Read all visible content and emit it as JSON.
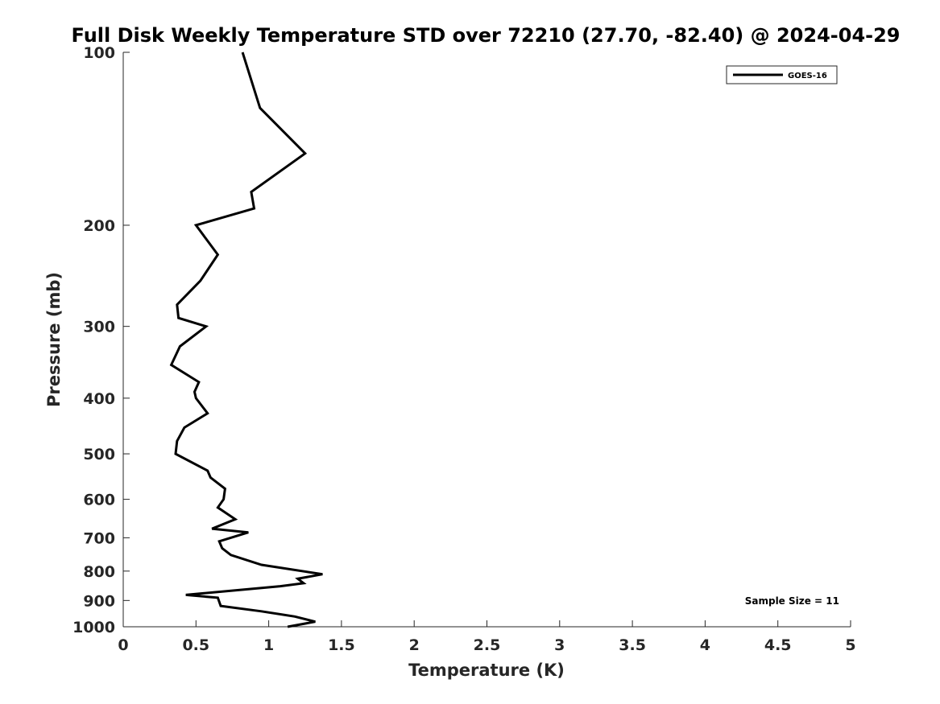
{
  "chart_data": {
    "type": "line",
    "title": "Full Disk Weekly Temperature STD over 72210 (27.70, -82.40) @ 2024-04-29",
    "xlabel": "Temperature (K)",
    "ylabel": "Pressure (mb)",
    "xlim": [
      0,
      5
    ],
    "ylim": [
      1000,
      100
    ],
    "yscale": "log",
    "xticks": [
      0,
      0.5,
      1,
      1.5,
      2,
      2.5,
      3,
      3.5,
      4,
      4.5,
      5
    ],
    "xtick_labels": [
      "0",
      "0.5",
      "1",
      "1.5",
      "2",
      "2.5",
      "3",
      "3.5",
      "4",
      "4.5",
      "5"
    ],
    "yticks": [
      100,
      200,
      300,
      400,
      500,
      600,
      700,
      800,
      900,
      1000
    ],
    "ytick_labels": [
      "100",
      "200",
      "300",
      "400",
      "500",
      "600",
      "700",
      "800",
      "900",
      "1000"
    ],
    "grid": false,
    "legend_position": "top-right",
    "annotation": "Sample Size = 11",
    "series": [
      {
        "name": "GOES-16",
        "color": "#000000",
        "temperature": [
          0.82,
          0.94,
          1.25,
          0.88,
          0.9,
          0.5,
          0.65,
          0.53,
          0.37,
          0.38,
          0.57,
          0.39,
          0.33,
          0.52,
          0.49,
          0.5,
          0.58,
          0.42,
          0.37,
          0.36,
          0.58,
          0.6,
          0.7,
          0.69,
          0.65,
          0.77,
          0.61,
          0.86,
          0.66,
          0.68,
          0.74,
          0.95,
          1.37,
          1.2,
          1.24,
          1.08,
          0.43,
          0.65,
          0.67,
          0.95,
          1.18,
          1.32,
          1.13
        ],
        "pressure": [
          100,
          125,
          150,
          175,
          187,
          200,
          225,
          250,
          275,
          290,
          300,
          325,
          350,
          375,
          390,
          400,
          425,
          450,
          475,
          500,
          535,
          550,
          575,
          600,
          620,
          650,
          675,
          685,
          710,
          730,
          750,
          780,
          810,
          825,
          840,
          850,
          880,
          890,
          920,
          940,
          960,
          980,
          1000
        ]
      }
    ]
  }
}
